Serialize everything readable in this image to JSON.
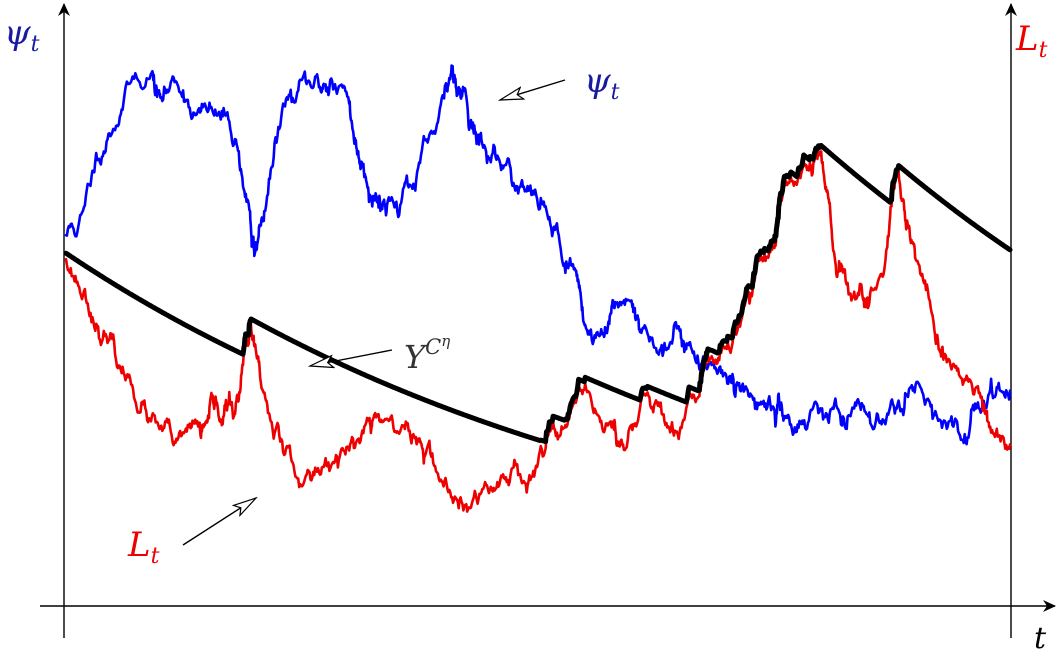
{
  "chart_data": {
    "type": "line",
    "title": "",
    "xlabel": "t",
    "ylabel_left": {
      "base": "ψ",
      "sub": "t"
    },
    "ylabel_right": {
      "base": "L",
      "sub": "t"
    },
    "xlim": [
      0,
      100
    ],
    "ylim": [
      0,
      100
    ],
    "grid": false,
    "series": [
      {
        "name": "psi",
        "color": "#0000ff",
        "seed": 11,
        "volatility": 2.6,
        "anchors": [
          [
            0,
            62
          ],
          [
            2,
            67
          ],
          [
            4,
            76
          ],
          [
            6,
            83
          ],
          [
            9,
            89
          ],
          [
            10,
            85
          ],
          [
            12,
            86
          ],
          [
            14,
            83
          ],
          [
            16,
            82
          ],
          [
            18,
            78
          ],
          [
            19.5,
            66
          ],
          [
            20,
            59
          ],
          [
            21,
            66
          ],
          [
            23,
            84
          ],
          [
            25,
            88
          ],
          [
            27,
            86
          ],
          [
            28,
            88
          ],
          [
            30,
            84
          ],
          [
            31,
            75
          ],
          [
            32,
            70
          ],
          [
            33,
            68
          ],
          [
            34,
            67
          ],
          [
            36,
            71
          ],
          [
            38,
            78
          ],
          [
            40,
            85
          ],
          [
            41,
            89
          ],
          [
            42,
            86
          ],
          [
            43,
            80
          ],
          [
            44,
            78
          ],
          [
            46,
            74
          ],
          [
            48,
            70
          ],
          [
            50,
            67
          ],
          [
            52,
            64
          ],
          [
            54,
            56
          ],
          [
            55,
            47
          ],
          [
            57,
            45
          ],
          [
            58,
            50
          ],
          [
            60,
            50
          ],
          [
            61,
            46
          ],
          [
            63,
            43
          ],
          [
            65,
            46
          ],
          [
            66,
            44
          ],
          [
            68,
            40
          ],
          [
            70,
            38
          ],
          [
            71,
            37
          ],
          [
            73,
            33
          ],
          [
            75,
            33
          ],
          [
            76,
            31
          ],
          [
            78,
            31
          ],
          [
            80,
            33
          ],
          [
            82,
            32
          ],
          [
            84,
            34
          ],
          [
            86,
            32
          ],
          [
            88,
            33
          ],
          [
            90,
            37
          ],
          [
            92,
            32
          ],
          [
            94,
            30
          ],
          [
            96,
            33
          ],
          [
            98,
            38
          ],
          [
            100,
            36
          ]
        ]
      },
      {
        "name": "L",
        "color": "#ee0000",
        "seed": 23,
        "volatility": 2.4,
        "anchors": [
          [
            0,
            58
          ],
          [
            2,
            53
          ],
          [
            4,
            46
          ],
          [
            6,
            40
          ],
          [
            8,
            34
          ],
          [
            10,
            30
          ],
          [
            12,
            29
          ],
          [
            14,
            30
          ],
          [
            15,
            31
          ],
          [
            16,
            34
          ],
          [
            17,
            33
          ],
          [
            18,
            34
          ],
          [
            19,
            44
          ],
          [
            19.6,
            47
          ],
          [
            20.5,
            40
          ],
          [
            22,
            28
          ],
          [
            24,
            24
          ],
          [
            26,
            21
          ],
          [
            28,
            23
          ],
          [
            30,
            26
          ],
          [
            32,
            31
          ],
          [
            33,
            32
          ],
          [
            35,
            29
          ],
          [
            37,
            28
          ],
          [
            38,
            25
          ],
          [
            40,
            20
          ],
          [
            42,
            17
          ],
          [
            44,
            19
          ],
          [
            46,
            21
          ],
          [
            48,
            22
          ],
          [
            50,
            24
          ],
          [
            52,
            29
          ],
          [
            54,
            34
          ],
          [
            56,
            33
          ],
          [
            58,
            30
          ],
          [
            59,
            27
          ],
          [
            61,
            35
          ],
          [
            63,
            34
          ],
          [
            65,
            29
          ],
          [
            67,
            35
          ],
          [
            68,
            42
          ],
          [
            70,
            43
          ],
          [
            72,
            51
          ],
          [
            73,
            55
          ],
          [
            75,
            60
          ],
          [
            76,
            70
          ],
          [
            78,
            73
          ],
          [
            79,
            72
          ],
          [
            80,
            76
          ],
          [
            81,
            65
          ],
          [
            82,
            56
          ],
          [
            84,
            52
          ],
          [
            85,
            50
          ],
          [
            87,
            60
          ],
          [
            88,
            72
          ],
          [
            89,
            63
          ],
          [
            90,
            58
          ],
          [
            92,
            46
          ],
          [
            93,
            42
          ],
          [
            95,
            37
          ],
          [
            97,
            35
          ],
          [
            98,
            29
          ],
          [
            100,
            27
          ]
        ]
      },
      {
        "name": "Y^{C^η}",
        "color": "#000000",
        "kind": "running-max-decay",
        "decay": 0.018
      }
    ],
    "annotations": [
      {
        "text_base": "ψ",
        "text_sub": "t",
        "target": "psi"
      },
      {
        "text_base": "Y",
        "text_sup1": "C",
        "text_sup2": "η",
        "target": "Y^{C^η}"
      },
      {
        "text_base": "L",
        "text_sub": "t",
        "target": "L"
      }
    ]
  }
}
